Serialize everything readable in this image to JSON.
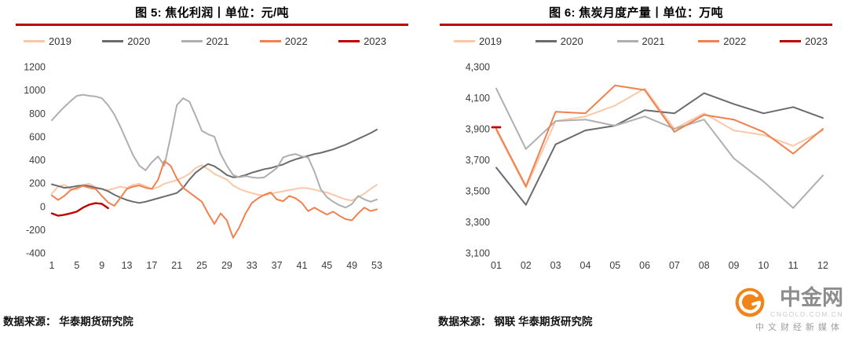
{
  "chart_data": [
    {
      "type": "line",
      "title": "图 5: 焦化利润丨单位：元/吨",
      "source": "数据来源： 华泰期货研究院",
      "xlim": [
        1,
        53
      ],
      "ylim": [
        -400,
        1200
      ],
      "grid": false,
      "legend_position": "top",
      "xtick_labels": [
        "1",
        "5",
        "9",
        "13",
        "17",
        "21",
        "25",
        "29",
        "33",
        "37",
        "41",
        "45",
        "49",
        "53"
      ],
      "ytick_labels": [
        "-400",
        "-200",
        "0",
        "200",
        "400",
        "600",
        "800",
        "1000",
        "1200"
      ],
      "series": [
        {
          "name": "2019",
          "color": "#FAC8A8",
          "values": [
            110,
            170,
            185,
            150,
            145,
            185,
            195,
            165,
            150,
            140,
            155,
            170,
            160,
            185,
            195,
            175,
            150,
            165,
            195,
            210,
            225,
            250,
            280,
            330,
            355,
            320,
            280,
            255,
            230,
            180,
            150,
            130,
            115,
            100,
            95,
            110,
            120,
            130,
            140,
            150,
            160,
            155,
            145,
            130,
            120,
            100,
            80,
            60,
            50,
            80,
            110,
            150,
            185
          ]
        },
        {
          "name": "2020",
          "color": "#6B6B6B",
          "values": [
            190,
            175,
            160,
            165,
            175,
            180,
            175,
            160,
            150,
            130,
            100,
            75,
            55,
            40,
            30,
            40,
            55,
            70,
            85,
            100,
            115,
            160,
            230,
            290,
            330,
            365,
            345,
            310,
            270,
            250,
            255,
            270,
            290,
            305,
            320,
            330,
            345,
            360,
            385,
            405,
            420,
            435,
            450,
            460,
            475,
            490,
            510,
            530,
            555,
            580,
            605,
            630,
            660
          ]
        },
        {
          "name": "2021",
          "color": "#AFAFAF",
          "values": [
            740,
            800,
            855,
            905,
            950,
            960,
            950,
            945,
            930,
            870,
            790,
            680,
            560,
            440,
            350,
            310,
            380,
            430,
            350,
            600,
            870,
            930,
            900,
            780,
            650,
            620,
            600,
            450,
            350,
            270,
            250,
            260,
            250,
            245,
            250,
            290,
            330,
            420,
            440,
            450,
            430,
            420,
            300,
            150,
            80,
            40,
            10,
            -10,
            20,
            90,
            60,
            40,
            60
          ]
        },
        {
          "name": "2022",
          "color": "#F0814F",
          "values": [
            95,
            55,
            90,
            140,
            160,
            175,
            160,
            150,
            90,
            35,
            5,
            75,
            150,
            170,
            180,
            160,
            150,
            230,
            390,
            350,
            240,
            160,
            120,
            80,
            40,
            -60,
            -150,
            -60,
            -120,
            -270,
            -180,
            -60,
            30,
            70,
            100,
            120,
            60,
            45,
            90,
            70,
            30,
            -40,
            -10,
            -40,
            -70,
            -45,
            -80,
            -110,
            -120,
            -60,
            -10,
            -40,
            -25
          ]
        },
        {
          "name": "2023",
          "color": "#C00000",
          "width": 2.4,
          "values": [
            -60,
            -80,
            -72,
            -60,
            -45,
            -10,
            15,
            28,
            22,
            -15,
            null,
            null,
            null,
            null,
            null,
            null,
            null,
            null,
            null,
            null,
            null,
            null,
            null,
            null,
            null,
            null,
            null,
            null,
            null,
            null,
            null,
            null,
            null,
            null,
            null,
            null,
            null,
            null,
            null,
            null,
            null,
            null,
            null,
            null,
            null,
            null,
            null,
            null,
            null,
            null,
            null,
            null,
            null
          ]
        }
      ]
    },
    {
      "type": "line",
      "title": "图 6: 焦炭月度产量丨单位：万吨",
      "source": "数据来源： 钢联 华泰期货研究院",
      "xlim": [
        1,
        12
      ],
      "ylim": [
        3100,
        4300
      ],
      "grid": false,
      "legend_position": "top",
      "xtick_labels": [
        "01",
        "02",
        "03",
        "04",
        "05",
        "06",
        "07",
        "08",
        "09",
        "10",
        "11",
        "12"
      ],
      "ytick_labels": [
        "3,100",
        "3,300",
        "3,500",
        "3,700",
        "3,900",
        "4,100",
        "4,300"
      ],
      "series": [
        {
          "name": "2019",
          "color": "#FAC8A8",
          "values": [
            3890,
            3520,
            3950,
            3980,
            4050,
            4160,
            3900,
            4000,
            3890,
            3860,
            3790,
            3890
          ]
        },
        {
          "name": "2020",
          "color": "#6B6B6B",
          "values": [
            3650,
            3410,
            3800,
            3890,
            3920,
            4020,
            4000,
            4130,
            4060,
            4000,
            4040,
            3970
          ]
        },
        {
          "name": "2021",
          "color": "#AFAFAF",
          "values": [
            4160,
            3770,
            3950,
            3960,
            3920,
            3980,
            3900,
            3960,
            3710,
            3560,
            3390,
            3600
          ]
        },
        {
          "name": "2022",
          "color": "#F0814F",
          "values": [
            3900,
            3530,
            4010,
            4000,
            4180,
            4150,
            3880,
            3990,
            3960,
            3880,
            3740,
            3900
          ]
        },
        {
          "name": "2023",
          "color": "#C00000",
          "width": 2.8,
          "values": [
            3910,
            null,
            null,
            null,
            null,
            null,
            null,
            null,
            null,
            null,
            null,
            null
          ]
        }
      ]
    }
  ],
  "watermark": {
    "brand": "中金网",
    "domain": "CNGOLD.COM.CN",
    "tagline": "中文财经新媒体",
    "logo_color": "#F08418"
  }
}
